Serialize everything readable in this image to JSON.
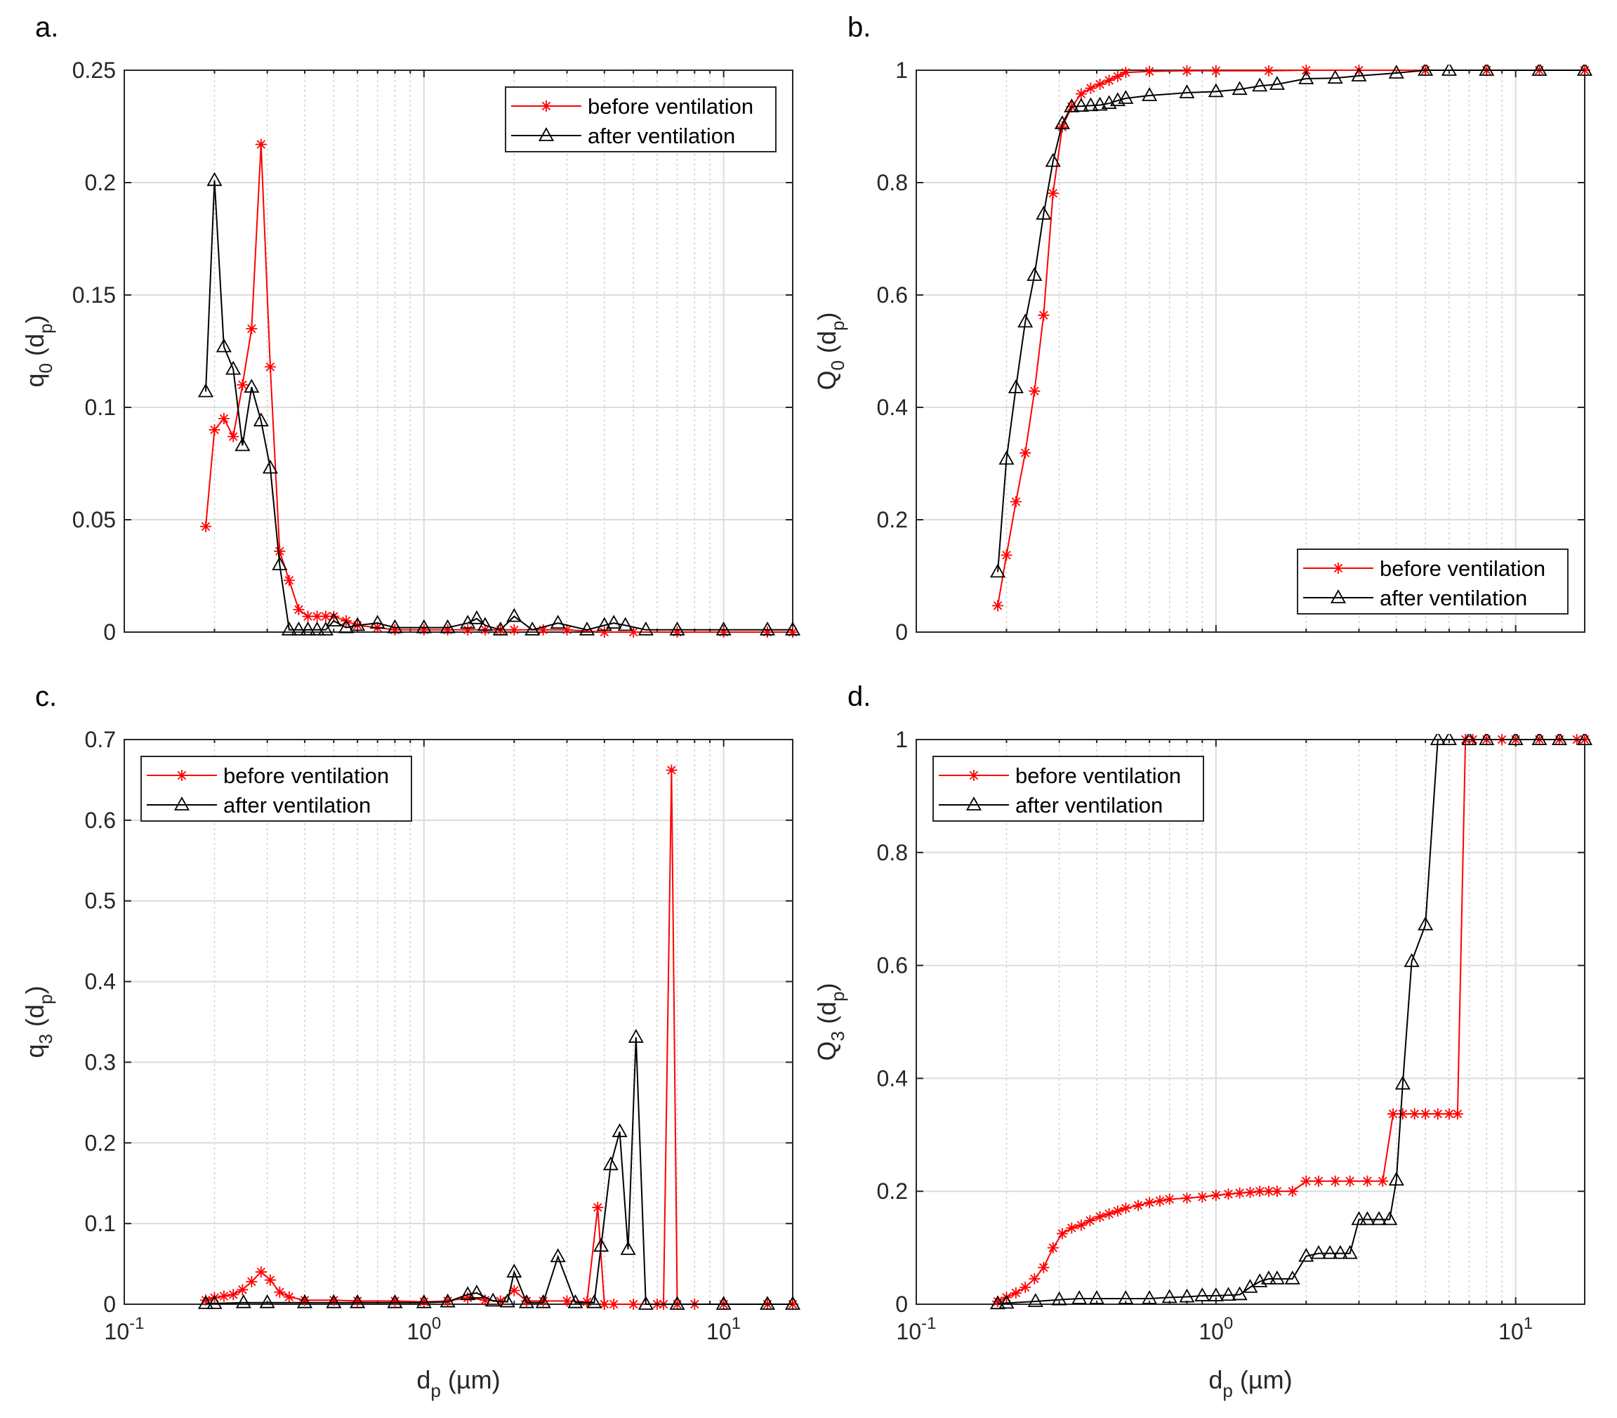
{
  "chart_data": [
    {
      "type": "line",
      "panel": "a.",
      "xscale": "log",
      "xlim": [
        0.1,
        17
      ],
      "ylim": [
        0,
        0.25
      ],
      "yticks": [
        0,
        0.05,
        0.1,
        0.15,
        0.2,
        0.25
      ],
      "ytick_labels": [
        "0",
        "0.05",
        "0.1",
        "0.15",
        "0.2",
        "0.25"
      ],
      "xlabel": "",
      "ylabel": {
        "base": "q",
        "sub1": "0",
        "mid": " (d",
        "sub2": "p",
        "end": ")"
      },
      "legend": "top-right",
      "grid": true,
      "series": [
        {
          "name": "before ventilation",
          "color": "#ff0000",
          "marker": "asterisk",
          "x": [
            0.187,
            0.2,
            0.215,
            0.231,
            0.248,
            0.266,
            0.286,
            0.307,
            0.33,
            0.355,
            0.382,
            0.41,
            0.44,
            0.47,
            0.5,
            0.55,
            0.6,
            0.7,
            0.8,
            1.0,
            1.2,
            1.4,
            1.6,
            1.8,
            2.0,
            2.5,
            3.0,
            4.0,
            5.0,
            7.0,
            10.0,
            14.0,
            17.0
          ],
          "y": [
            0.047,
            0.09,
            0.095,
            0.087,
            0.11,
            0.135,
            0.217,
            0.118,
            0.036,
            0.023,
            0.01,
            0.007,
            0.007,
            0.007,
            0.007,
            0.005,
            0.003,
            0.002,
            0.001,
            0.001,
            0.001,
            0.001,
            0.001,
            0.001,
            0.001,
            0.001,
            0.001,
            0.0,
            0.0,
            0.0,
            0.0,
            0.0,
            0.0
          ]
        },
        {
          "name": "after ventilation",
          "color": "#000000",
          "marker": "triangle",
          "x": [
            0.187,
            0.2,
            0.215,
            0.231,
            0.248,
            0.266,
            0.286,
            0.307,
            0.33,
            0.355,
            0.382,
            0.41,
            0.44,
            0.47,
            0.5,
            0.55,
            0.6,
            0.7,
            0.8,
            1.0,
            1.2,
            1.4,
            1.5,
            1.6,
            1.8,
            2.0,
            2.3,
            2.8,
            3.5,
            4.0,
            4.3,
            4.7,
            5.5,
            7.0,
            10.0,
            14.0,
            17.0
          ],
          "y": [
            0.107,
            0.201,
            0.127,
            0.117,
            0.083,
            0.109,
            0.094,
            0.073,
            0.03,
            0.001,
            0.001,
            0.001,
            0.001,
            0.001,
            0.005,
            0.002,
            0.003,
            0.004,
            0.002,
            0.002,
            0.002,
            0.004,
            0.006,
            0.003,
            0.001,
            0.007,
            0.001,
            0.004,
            0.001,
            0.003,
            0.004,
            0.003,
            0.001,
            0.001,
            0.001,
            0.001,
            0.001
          ]
        }
      ]
    },
    {
      "type": "line",
      "panel": "b.",
      "xscale": "log",
      "xlim": [
        0.1,
        17
      ],
      "ylim": [
        0,
        1
      ],
      "yticks": [
        0,
        0.2,
        0.4,
        0.6,
        0.8,
        1
      ],
      "ytick_labels": [
        "0",
        "0.2",
        "0.4",
        "0.6",
        "0.8",
        "1"
      ],
      "xlabel": "",
      "ylabel": {
        "base": "Q",
        "sub1": "0",
        "mid": " (d",
        "sub2": "p",
        "end": ")"
      },
      "legend": "bottom-right",
      "grid": true,
      "series": [
        {
          "name": "before ventilation",
          "color": "#ff0000",
          "marker": "asterisk",
          "x": [
            0.187,
            0.2,
            0.215,
            0.231,
            0.248,
            0.266,
            0.286,
            0.307,
            0.33,
            0.355,
            0.382,
            0.41,
            0.44,
            0.47,
            0.5,
            0.6,
            0.8,
            1.0,
            1.5,
            2.0,
            3.0,
            5.0,
            8.0,
            12.0,
            17.0
          ],
          "y": [
            0.047,
            0.137,
            0.232,
            0.319,
            0.429,
            0.564,
            0.781,
            0.899,
            0.935,
            0.958,
            0.968,
            0.975,
            0.982,
            0.989,
            0.996,
            0.998,
            0.999,
            0.999,
            0.999,
            1.0,
            1.0,
            1.0,
            1.0,
            1.0,
            1.0
          ]
        },
        {
          "name": "after ventilation",
          "color": "#000000",
          "marker": "triangle",
          "x": [
            0.187,
            0.2,
            0.215,
            0.231,
            0.248,
            0.266,
            0.286,
            0.307,
            0.33,
            0.355,
            0.382,
            0.41,
            0.44,
            0.47,
            0.5,
            0.6,
            0.8,
            1.0,
            1.2,
            1.4,
            1.6,
            2.0,
            2.5,
            3.0,
            4.0,
            5.0,
            6.0,
            8.0,
            12.0,
            17.0
          ],
          "y": [
            0.107,
            0.308,
            0.435,
            0.552,
            0.635,
            0.744,
            0.838,
            0.905,
            0.935,
            0.936,
            0.937,
            0.938,
            0.941,
            0.946,
            0.95,
            0.955,
            0.96,
            0.962,
            0.966,
            0.972,
            0.975,
            0.985,
            0.986,
            0.99,
            0.995,
            1.0,
            1.0,
            1.0,
            1.0,
            1.0
          ]
        }
      ]
    },
    {
      "type": "line",
      "panel": "c.",
      "xscale": "log",
      "xlim": [
        0.1,
        17
      ],
      "ylim": [
        0,
        0.7
      ],
      "yticks": [
        0,
        0.1,
        0.2,
        0.3,
        0.4,
        0.5,
        0.6,
        0.7
      ],
      "ytick_labels": [
        "0",
        "0.1",
        "0.2",
        "0.3",
        "0.4",
        "0.5",
        "0.6",
        "0.7"
      ],
      "xticks": [
        0.1,
        1,
        10
      ],
      "xtick_labels": [
        {
          "base": "10",
          "exp": "-1"
        },
        {
          "base": "10",
          "exp": "0"
        },
        {
          "base": "10",
          "exp": "1"
        }
      ],
      "xlabel": {
        "base": "d",
        "sub": "p",
        "end": " (µm)"
      },
      "ylabel": {
        "base": "q",
        "sub1": "3",
        "mid": " (d",
        "sub2": "p",
        "end": ")"
      },
      "legend": "top-left",
      "grid": true,
      "series": [
        {
          "name": "before ventilation",
          "color": "#ff0000",
          "marker": "asterisk",
          "x": [
            0.187,
            0.2,
            0.215,
            0.231,
            0.248,
            0.266,
            0.286,
            0.307,
            0.33,
            0.355,
            0.4,
            0.5,
            0.6,
            0.8,
            1.0,
            1.2,
            1.4,
            1.6,
            1.8,
            2.0,
            2.2,
            2.5,
            3.0,
            3.5,
            3.8,
            4.0,
            4.3,
            5.0,
            6.0,
            6.3,
            6.7,
            7.0,
            8.0,
            10.0,
            14.0,
            17.0
          ],
          "y": [
            0.005,
            0.008,
            0.01,
            0.012,
            0.018,
            0.028,
            0.04,
            0.03,
            0.015,
            0.009,
            0.005,
            0.005,
            0.004,
            0.004,
            0.003,
            0.004,
            0.008,
            0.005,
            0.004,
            0.017,
            0.004,
            0.004,
            0.004,
            0.003,
            0.12,
            0.0,
            0.0,
            0.0,
            0.0,
            0.0,
            0.662,
            0.0,
            0.0,
            0.0,
            0.0,
            0.0
          ]
        },
        {
          "name": "after ventilation",
          "color": "#000000",
          "marker": "triangle",
          "x": [
            0.187,
            0.2,
            0.25,
            0.3,
            0.4,
            0.5,
            0.6,
            0.8,
            1.0,
            1.2,
            1.4,
            1.5,
            1.7,
            1.9,
            2.0,
            2.2,
            2.5,
            2.8,
            3.2,
            3.7,
            3.9,
            4.2,
            4.5,
            4.8,
            5.1,
            5.5,
            7.0,
            10.0,
            14.0,
            17.0
          ],
          "y": [
            0.001,
            0.001,
            0.002,
            0.002,
            0.002,
            0.002,
            0.002,
            0.002,
            0.002,
            0.003,
            0.012,
            0.014,
            0.004,
            0.003,
            0.04,
            0.002,
            0.002,
            0.059,
            0.002,
            0.002,
            0.072,
            0.173,
            0.214,
            0.068,
            0.331,
            0.0,
            0.0,
            0.0,
            0.0,
            0.0
          ]
        }
      ]
    },
    {
      "type": "line",
      "panel": "d.",
      "xscale": "log",
      "xlim": [
        0.1,
        17
      ],
      "ylim": [
        0,
        1
      ],
      "yticks": [
        0,
        0.2,
        0.4,
        0.6,
        0.8,
        1
      ],
      "ytick_labels": [
        "0",
        "0.2",
        "0.4",
        "0.6",
        "0.8",
        "1"
      ],
      "xticks": [
        0.1,
        1,
        10
      ],
      "xtick_labels": [
        {
          "base": "10",
          "exp": "-1"
        },
        {
          "base": "10",
          "exp": "0"
        },
        {
          "base": "10",
          "exp": "1"
        }
      ],
      "xlabel": {
        "base": "d",
        "sub": "p",
        "end": " (µm)"
      },
      "ylabel": {
        "base": "Q",
        "sub1": "3",
        "mid": " (d",
        "sub2": "p",
        "end": ")"
      },
      "legend": "top-left",
      "grid": true,
      "series": [
        {
          "name": "before ventilation",
          "color": "#ff0000",
          "marker": "asterisk",
          "x": [
            0.187,
            0.2,
            0.215,
            0.231,
            0.248,
            0.266,
            0.286,
            0.307,
            0.33,
            0.355,
            0.38,
            0.41,
            0.44,
            0.47,
            0.5,
            0.55,
            0.6,
            0.65,
            0.7,
            0.8,
            0.9,
            1.0,
            1.1,
            1.2,
            1.3,
            1.4,
            1.5,
            1.6,
            1.8,
            2.0,
            2.2,
            2.5,
            2.8,
            3.2,
            3.6,
            3.9,
            4.2,
            4.6,
            5.0,
            5.5,
            6.0,
            6.4,
            6.8,
            7.2,
            8.0,
            9.0,
            10.0,
            12.0,
            14.0,
            16.0,
            17.0
          ],
          "y": [
            0.005,
            0.012,
            0.02,
            0.03,
            0.045,
            0.065,
            0.1,
            0.125,
            0.135,
            0.14,
            0.148,
            0.155,
            0.16,
            0.165,
            0.17,
            0.175,
            0.18,
            0.183,
            0.186,
            0.188,
            0.19,
            0.193,
            0.195,
            0.197,
            0.198,
            0.2,
            0.2,
            0.2,
            0.2,
            0.218,
            0.218,
            0.218,
            0.218,
            0.218,
            0.218,
            0.337,
            0.337,
            0.337,
            0.337,
            0.337,
            0.337,
            0.337,
            1.0,
            1.0,
            1.0,
            1.0,
            1.0,
            1.0,
            1.0,
            1.0,
            1.0
          ]
        },
        {
          "name": "after ventilation",
          "color": "#000000",
          "marker": "triangle",
          "x": [
            0.187,
            0.2,
            0.25,
            0.3,
            0.35,
            0.4,
            0.5,
            0.6,
            0.7,
            0.8,
            0.9,
            1.0,
            1.1,
            1.2,
            1.3,
            1.4,
            1.5,
            1.6,
            1.8,
            2.0,
            2.2,
            2.4,
            2.6,
            2.8,
            3.0,
            3.2,
            3.5,
            3.8,
            4.0,
            4.2,
            4.5,
            5.0,
            5.5,
            6.0,
            7.0,
            8.0,
            10.0,
            12.0,
            14.0,
            17.0
          ],
          "y": [
            0.001,
            0.002,
            0.005,
            0.008,
            0.01,
            0.01,
            0.01,
            0.01,
            0.012,
            0.013,
            0.015,
            0.015,
            0.016,
            0.017,
            0.03,
            0.04,
            0.045,
            0.045,
            0.045,
            0.085,
            0.09,
            0.09,
            0.09,
            0.09,
            0.15,
            0.15,
            0.15,
            0.15,
            0.22,
            0.39,
            0.607,
            0.672,
            1.0,
            1.0,
            1.0,
            1.0,
            1.0,
            1.0,
            1.0,
            1.0
          ]
        }
      ]
    }
  ]
}
